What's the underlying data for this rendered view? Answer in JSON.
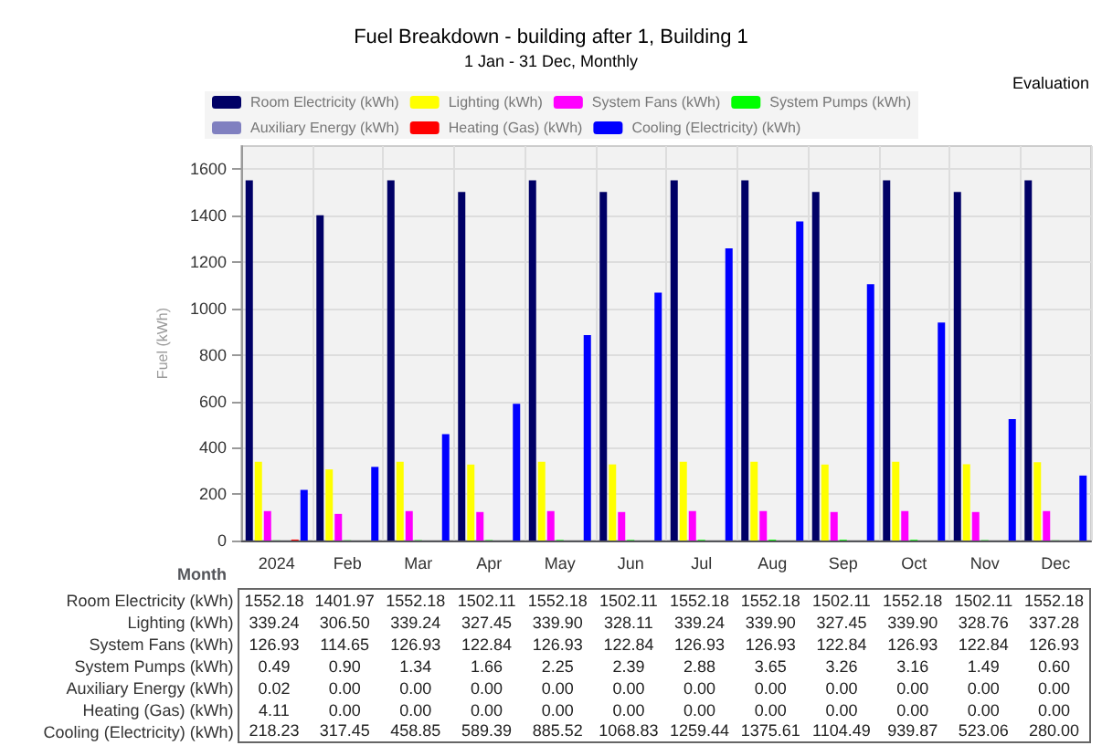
{
  "chart_data": {
    "type": "bar",
    "title": "Fuel Breakdown - building after 1, Building 1",
    "subtitle": "1 Jan - 31 Dec, Monthly",
    "xlabel": "Month",
    "ylabel": "Fuel (kWh)",
    "annotations": [
      "Evaluation"
    ],
    "categories": [
      "2024",
      "Feb",
      "Mar",
      "Apr",
      "May",
      "Jun",
      "Jul",
      "Aug",
      "Sep",
      "Oct",
      "Nov",
      "Dec"
    ],
    "ylim": [
      0,
      1700
    ],
    "yticks": [
      0,
      200,
      400,
      600,
      800,
      1000,
      1200,
      1400,
      1600
    ],
    "grid": true,
    "legend": "top",
    "data_labels": false,
    "series": [
      {
        "name": "Room Electricity (kWh)",
        "color": "#000066",
        "values": [
          1552.18,
          1401.97,
          1552.18,
          1502.11,
          1552.18,
          1502.11,
          1552.18,
          1552.18,
          1502.11,
          1552.18,
          1502.11,
          1552.18
        ],
        "value_labels": [
          "1552.18",
          "1401.97",
          "1552.18",
          "1502.11",
          "1552.18",
          "1502.11",
          "1552.18",
          "1552.18",
          "1502.11",
          "1552.18",
          "1502.11",
          "1552.18"
        ]
      },
      {
        "name": "Lighting (kWh)",
        "color": "#ffff00",
        "values": [
          339.24,
          306.5,
          339.24,
          327.45,
          339.9,
          328.11,
          339.24,
          339.9,
          327.45,
          339.9,
          328.76,
          337.28
        ],
        "value_labels": [
          "339.24",
          "306.50",
          "339.24",
          "327.45",
          "339.90",
          "328.11",
          "339.24",
          "339.90",
          "327.45",
          "339.90",
          "328.76",
          "337.28"
        ]
      },
      {
        "name": "System Fans (kWh)",
        "color": "#ff00ff",
        "values": [
          126.93,
          114.65,
          126.93,
          122.84,
          126.93,
          122.84,
          126.93,
          126.93,
          122.84,
          126.93,
          122.84,
          126.93
        ],
        "value_labels": [
          "126.93",
          "114.65",
          "126.93",
          "122.84",
          "126.93",
          "122.84",
          "126.93",
          "126.93",
          "122.84",
          "126.93",
          "122.84",
          "126.93"
        ]
      },
      {
        "name": "System Pumps (kWh)",
        "color": "#00ff00",
        "values": [
          0.49,
          0.9,
          1.34,
          1.66,
          2.25,
          2.39,
          2.88,
          3.65,
          3.26,
          3.16,
          1.49,
          0.6
        ],
        "value_labels": [
          "0.49",
          "0.90",
          "1.34",
          "1.66",
          "2.25",
          "2.39",
          "2.88",
          "3.65",
          "3.26",
          "3.16",
          "1.49",
          "0.60"
        ]
      },
      {
        "name": "Auxiliary Energy (kWh)",
        "color": "#8080c0",
        "values": [
          0.02,
          0,
          0,
          0,
          0,
          0,
          0,
          0,
          0,
          0,
          0,
          0
        ],
        "value_labels": [
          "0.02",
          "0.00",
          "0.00",
          "0.00",
          "0.00",
          "0.00",
          "0.00",
          "0.00",
          "0.00",
          "0.00",
          "0.00",
          "0.00"
        ]
      },
      {
        "name": "Heating (Gas) (kWh)",
        "color": "#ff0000",
        "values": [
          4.11,
          0,
          0,
          0,
          0,
          0,
          0,
          0,
          0,
          0,
          0,
          0
        ],
        "value_labels": [
          "4.11",
          "0.00",
          "0.00",
          "0.00",
          "0.00",
          "0.00",
          "0.00",
          "0.00",
          "0.00",
          "0.00",
          "0.00",
          "0.00"
        ]
      },
      {
        "name": "Cooling (Electricity) (kWh)",
        "color": "#0000ff",
        "values": [
          218.23,
          317.45,
          458.85,
          589.39,
          885.52,
          1068.83,
          1259.44,
          1375.61,
          1104.49,
          939.87,
          523.06,
          280
        ],
        "value_labels": [
          "218.23",
          "317.45",
          "458.85",
          "589.39",
          "885.52",
          "1068.83",
          "1259.44",
          "1375.61",
          "1104.49",
          "939.87",
          "523.06",
          "280.00"
        ]
      }
    ]
  }
}
